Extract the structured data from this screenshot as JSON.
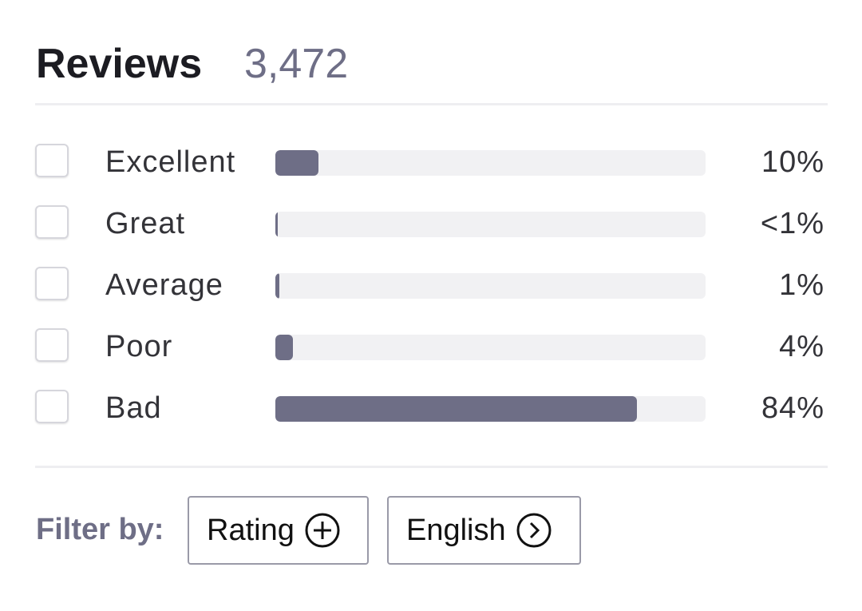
{
  "header": {
    "title": "Reviews",
    "count": "3,472"
  },
  "ratings": {
    "range": [
      0,
      100
    ],
    "rows": [
      {
        "label": "Excellent",
        "value": 10,
        "value_label": "10%"
      },
      {
        "label": "Great",
        "value": 0.5,
        "value_label": "<1%"
      },
      {
        "label": "Average",
        "value": 1,
        "value_label": "1%"
      },
      {
        "label": "Poor",
        "value": 4,
        "value_label": "4%"
      },
      {
        "label": "Bad",
        "value": 84,
        "value_label": "84%"
      }
    ]
  },
  "filter": {
    "label": "Filter by:",
    "buttons": [
      "Rating",
      "English"
    ]
  }
}
